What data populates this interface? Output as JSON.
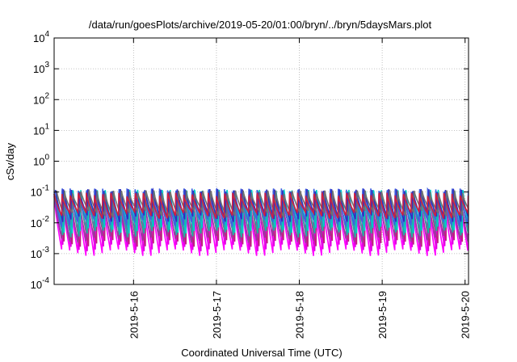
{
  "chart_data": {
    "type": "line",
    "title": "/data/run/goesPlots/archive/2019-05-20/01:00/bryn/../bryn/5daysMars.plot",
    "xlabel": "Coordinated Universal Time (UTC)",
    "ylabel": "cSv/day",
    "yscale": "log",
    "ylim": [
      0.0001,
      10000
    ],
    "xlim": [
      "2019-05-15 01:00",
      "2019-05-20 01:00"
    ],
    "x_ticks": [
      "2019-5-16",
      "2019-5-17",
      "2019-5-18",
      "2019-5-19",
      "2019-5-20"
    ],
    "y_ticks": [
      {
        "value": 0.0001,
        "base": "10",
        "exp": "-4"
      },
      {
        "value": 0.001,
        "base": "10",
        "exp": "-3"
      },
      {
        "value": 0.01,
        "base": "10",
        "exp": "-2"
      },
      {
        "value": 0.1,
        "base": "10",
        "exp": "-1"
      },
      {
        "value": 1,
        "base": "10",
        "exp": "0"
      },
      {
        "value": 10,
        "base": "10",
        "exp": "1"
      },
      {
        "value": 100,
        "base": "10",
        "exp": "2"
      },
      {
        "value": 1000,
        "base": "10",
        "exp": "3"
      },
      {
        "value": 10000,
        "base": "10",
        "exp": "4"
      }
    ],
    "grid": true,
    "legend": "none",
    "pattern": {
      "description": "sawtooth dose-rate curves, sharp peak followed by decay, approx. 10 cycles per day",
      "cycles_per_day": 10.2,
      "peak_range": [
        0.05,
        0.12
      ],
      "trough_range": [
        0.001,
        0.03
      ]
    },
    "series": [
      {
        "color": "#ff00ff",
        "peak": 0.075,
        "trough": 0.0011
      },
      {
        "color": "#e000e0",
        "peak": 0.06,
        "trough": 0.0016
      },
      {
        "color": "#c02080",
        "peak": 0.07,
        "trough": 0.0022
      },
      {
        "color": "#9a3aa0",
        "peak": 0.085,
        "trough": 0.003
      },
      {
        "color": "#20b0a0",
        "peak": 0.09,
        "trough": 0.0045
      },
      {
        "color": "#00c8c8",
        "peak": 0.1,
        "trough": 0.006
      },
      {
        "color": "#4060e0",
        "peak": 0.11,
        "trough": 0.01
      },
      {
        "color": "#3030c0",
        "peak": 0.105,
        "trough": 0.014
      },
      {
        "color": "#707070",
        "peak": 0.095,
        "trough": 0.02
      },
      {
        "color": "#d02040",
        "peak": 0.08,
        "trough": 0.018
      }
    ]
  }
}
